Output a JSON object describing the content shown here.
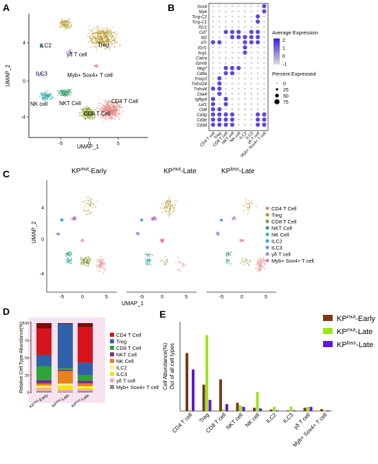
{
  "panels": {
    "a": "A",
    "b": "B",
    "c": "C",
    "d": "D",
    "e": "E"
  },
  "panel_a": {
    "xlabel": "UMAP_1",
    "ylabel": "UMAP_2",
    "xticks": [
      "-5",
      "0",
      "5"
    ],
    "yticks": [
      "4",
      "0",
      "-4"
    ],
    "clusters": [
      "ILC2",
      "γδ T cell",
      "Treg",
      "ILC3",
      "Myb+ Sox4+ T cell",
      "NK cell",
      "NKT Cell",
      "CD4 T Cell",
      "CD8 T Cell"
    ]
  },
  "panel_b": {
    "genes": [
      "Sox4",
      "Myb",
      "Tcrg-C2",
      "Tcrg-C1",
      "Il1r1",
      "Cd7",
      "Id2",
      "Il7r",
      "Il1rl1",
      "Arg1",
      "Calca",
      "Gzmb",
      "Nkg7",
      "Cd8a",
      "Foxp3",
      "Tnfrsf18",
      "Tnfrsf4",
      "Ctla4",
      "Igfbp4",
      "Lef1",
      "Cd4",
      "Cd3g",
      "Cd3e",
      "Cd3d"
    ],
    "cell_types": [
      "CD4 T cell",
      "Treg",
      "CD8 T cell",
      "NKT cell",
      "NK cell",
      "ILC2",
      "ILC3",
      "γδ T cell",
      "Myb+ Sox4+ T cell"
    ],
    "legend_avg_title": "Average Expression",
    "legend_avg_ticks": [
      "2",
      "1",
      "0",
      "-1"
    ],
    "legend_pct_title": "Percent Expressed",
    "legend_pct_values": [
      "0",
      "25",
      "50",
      "75"
    ],
    "colors": {
      "high": "#3a1fd6",
      "low": "#dcdcdc"
    }
  },
  "panel_c": {
    "titles": [
      {
        "base": "KP",
        "sup": "mut",
        "rest": "-Early"
      },
      {
        "base": "KP",
        "sup": "mut",
        "rest": "-Late"
      },
      {
        "base": "KP",
        "sup": "loss",
        "rest": "-Late"
      }
    ],
    "xlabel": "UMAP_1",
    "ylabel": "UMAP_2",
    "xticks": [
      "-5",
      "0",
      "5"
    ],
    "yticks": [
      "4",
      "0",
      "-4"
    ],
    "legend": [
      {
        "label": "CD4 T Cell",
        "color": "#e58a87"
      },
      {
        "label": "Treg",
        "color": "#b99a2c"
      },
      {
        "label": "CD8 T Cell",
        "color": "#8c9a2e"
      },
      {
        "label": "NKT Cell",
        "color": "#3aa46a"
      },
      {
        "label": "NK Cell",
        "color": "#3fb3a8"
      },
      {
        "label": "ILC2",
        "color": "#3ca7d6"
      },
      {
        "label": "ILC3",
        "color": "#7f8fdc"
      },
      {
        "label": "γδ T cell",
        "color": "#b77fd6"
      },
      {
        "label": "Myb+ Sox4+ T cell",
        "color": "#e57ab8"
      }
    ]
  },
  "chart_data": [
    {
      "type": "bar",
      "stacked": true,
      "ylabel": "Relative Cell Type Abundance(%)",
      "ylim": [
        0,
        100
      ],
      "yticks": [
        "100",
        "75",
        "50",
        "25",
        "0"
      ],
      "categories": [
        {
          "base": "KP",
          "sup": "mut",
          "rest": "-Early"
        },
        {
          "base": "KP",
          "sup": "mut",
          "rest": "-Late"
        },
        {
          "base": "KP",
          "sup": "loss",
          "rest": "-Late"
        }
      ],
      "series": [
        {
          "name": "Myb+ Sox4+ T cell",
          "color": "#8a8a8a",
          "values": [
            2,
            1,
            2
          ]
        },
        {
          "name": "γδ T cell",
          "color": "#f2a7c0",
          "values": [
            4,
            3,
            3
          ]
        },
        {
          "name": "ILC3",
          "color": "#f5e50f",
          "values": [
            2,
            6,
            2
          ]
        },
        {
          "name": "ILC2",
          "color": "#f7f18a",
          "values": [
            2,
            3,
            2
          ]
        },
        {
          "name": "NK Cell",
          "color": "#e8811c",
          "values": [
            3,
            18,
            4
          ]
        },
        {
          "name": "NKT Cell",
          "color": "#7a2f8a",
          "values": [
            5,
            2,
            4
          ]
        },
        {
          "name": "CD8 T Cell",
          "color": "#2ea33a",
          "values": [
            20,
            2,
            8
          ]
        },
        {
          "name": "Treg",
          "color": "#2f61a8",
          "values": [
            16,
            64,
            18
          ]
        },
        {
          "name": "CD4 T Cell",
          "color": "#d7141b",
          "values": [
            38,
            0,
            51
          ]
        },
        {
          "name": "",
          "color": "#7a0e0e",
          "values": [
            8,
            1,
            6
          ]
        }
      ],
      "legend": [
        "CD4 T Cell",
        "Treg",
        "CD8 T Cell",
        "NKT Cell",
        "NK Cell",
        "ILC2",
        "ILC3",
        "γδ T cell",
        "Myb+ Sox4+ T cell"
      ]
    },
    {
      "type": "bar",
      "ylabel": "Cell Abundance(%)",
      "ylabel2": "Out of all cell types",
      "ylim": [
        0,
        25
      ],
      "yticks": [
        "25",
        "20",
        "15",
        "10",
        "5",
        "0"
      ],
      "categories": [
        "CD4 T cell",
        "Treg",
        "CD8 T cell",
        "NKT cell",
        "NK cell",
        "ILC2",
        "ILC3",
        "γδ T cell",
        "Myb+ Sox4+ T cell"
      ],
      "series": [
        {
          "name": "KP mut-Early",
          "color": "#7a3a12",
          "values": [
            17.6,
            8.0,
            9.6,
            2.5,
            1.0,
            0.5,
            0.2,
            1.0,
            0.6
          ]
        },
        {
          "name": "KP mut-Late",
          "color": "#9be61e",
          "values": [
            0.3,
            23.0,
            0.5,
            1.7,
            5.8,
            1.3,
            1.4,
            1.3,
            0.3
          ]
        },
        {
          "name": "KP loss-Late",
          "color": "#5a19e0",
          "values": [
            12.6,
            3.4,
            2.1,
            1.3,
            0.8,
            0.2,
            0.2,
            1.3,
            0.2
          ]
        }
      ],
      "legend": [
        {
          "base": "KP",
          "sup": "mut",
          "rest": "-Early",
          "color": "#7a3a12"
        },
        {
          "base": "KP",
          "sup": "mut",
          "rest": "-Late",
          "color": "#9be61e"
        },
        {
          "base": "KP",
          "sup": "loss",
          "rest": "-Late",
          "color": "#5a19e0"
        }
      ]
    }
  ]
}
